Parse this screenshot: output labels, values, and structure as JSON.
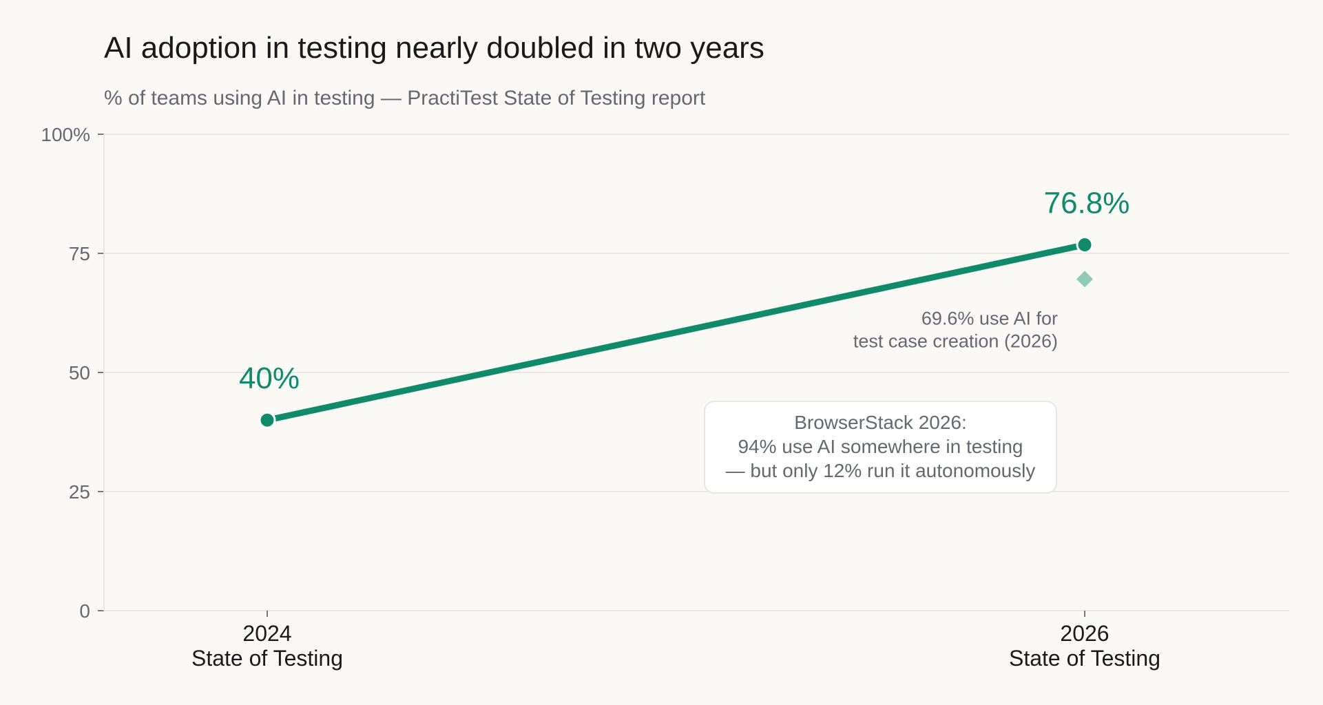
{
  "colors": {
    "background": "#faf9f5",
    "primary": "#0f8a6b",
    "secondary": "#8fcab7",
    "title_text": "#1a1a1a",
    "muted_text": "#666870",
    "axis": "#777777",
    "grid": "#e8e7e2",
    "box_border": "#e6e5e0",
    "box_fill": "#ffffff"
  },
  "chart_data": {
    "type": "line",
    "title": "AI adoption in testing nearly doubled in two years",
    "subtitle": "% of teams using AI in testing — PractiTest State of Testing report",
    "xlabel": "",
    "ylabel": "",
    "ylim": [
      0,
      100
    ],
    "grid": true,
    "y_ticks": [
      {
        "value": 0,
        "label": "0"
      },
      {
        "value": 25,
        "label": "25"
      },
      {
        "value": 50,
        "label": "50"
      },
      {
        "value": 75,
        "label": "75"
      },
      {
        "value": 100,
        "label": "100%"
      }
    ],
    "categories": [
      {
        "year": "2024",
        "label": "State of Testing"
      },
      {
        "year": "2026",
        "label": "State of Testing"
      }
    ],
    "series": [
      {
        "values": [
          40,
          76.8
        ],
        "data_labels": [
          "40%",
          "76.8%"
        ]
      }
    ],
    "secondary_points": [
      {
        "category_index": 1,
        "value": 69.6,
        "marker": "diamond",
        "label_lines": [
          "69.6% use AI for",
          "test case creation (2026)"
        ]
      }
    ],
    "annotation_box": {
      "lines": [
        "BrowserStack 2026:",
        "94% use AI somewhere in testing",
        "— but only 12% run it autonomously"
      ]
    }
  }
}
